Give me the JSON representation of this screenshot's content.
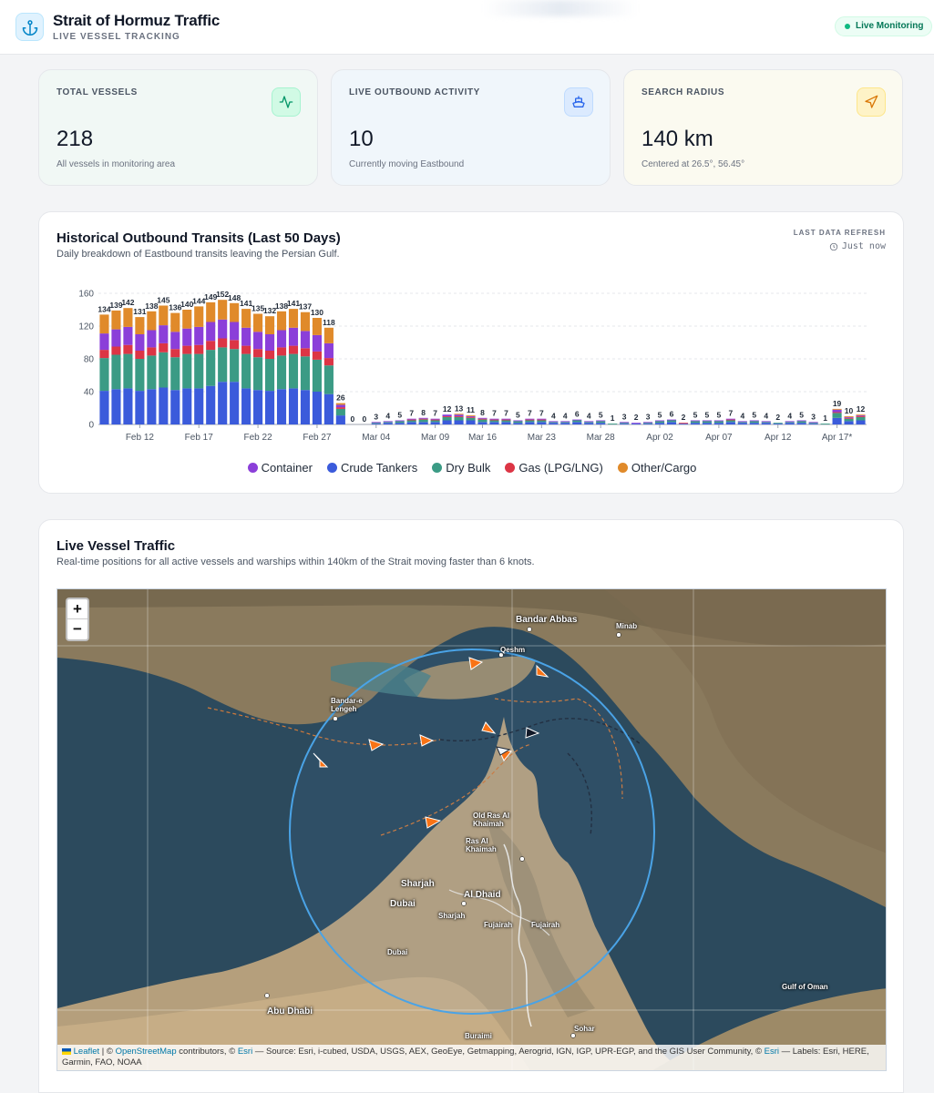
{
  "header": {
    "title": "Strait of Hormuz Traffic",
    "subtitle": "LIVE VESSEL TRACKING",
    "status_badge": "Live Monitoring"
  },
  "stats": [
    {
      "label": "TOTAL VESSELS",
      "value": "218",
      "sub": "All vessels in monitoring area",
      "icon": "activity-icon"
    },
    {
      "label": "LIVE OUTBOUND ACTIVITY",
      "value": "10",
      "sub": "Currently moving Eastbound",
      "icon": "ship-icon"
    },
    {
      "label": "SEARCH RADIUS",
      "value": "140 km",
      "sub": "Centered at 26.5°, 56.45°",
      "icon": "navigation-icon"
    }
  ],
  "transits": {
    "title": "Historical Outbound Transits (Last 50 Days)",
    "description": "Daily breakdown of Eastbound transits leaving the Persian Gulf.",
    "refresh_label": "LAST DATA REFRESH",
    "refresh_value": "Just now"
  },
  "chart_data": {
    "type": "bar",
    "stacked": true,
    "ylim": [
      0,
      160
    ],
    "yticks": [
      0,
      40,
      80,
      120,
      160
    ],
    "grid": true,
    "legend_position": "bottom",
    "x_tick_labels": [
      "Feb 12",
      "Feb 17",
      "Feb 22",
      "Feb 27",
      "Mar 04",
      "Mar 09",
      "Mar 16",
      "Mar 23",
      "Mar 28",
      "Apr 02",
      "Apr 07",
      "Apr 12",
      "Apr 17*"
    ],
    "x_tick_positions": [
      3,
      8,
      13,
      18,
      23,
      28,
      32,
      37,
      42,
      47,
      52,
      57,
      62
    ],
    "totals": [
      134,
      139,
      142,
      131,
      138,
      145,
      136,
      140,
      144,
      149,
      152,
      148,
      141,
      135,
      132,
      138,
      141,
      137,
      130,
      118,
      26,
      0,
      0,
      3,
      4,
      5,
      7,
      8,
      7,
      12,
      13,
      11,
      8,
      7,
      7,
      5,
      7,
      7,
      4,
      4,
      6,
      4,
      5,
      1,
      3,
      2,
      3,
      5,
      6,
      2,
      5,
      5,
      5,
      7,
      4,
      5,
      4,
      2,
      4,
      5,
      3,
      1,
      19,
      10,
      12
    ],
    "series": [
      {
        "name": "Crude Tankers",
        "color": "#3b5bdb",
        "values": [
          41,
          43,
          44,
          41,
          43,
          45,
          42,
          44,
          44,
          47,
          52,
          52,
          44,
          42,
          41,
          43,
          44,
          42,
          40,
          37,
          11,
          0,
          0,
          1,
          2,
          2,
          3,
          3,
          3,
          5,
          5,
          5,
          3,
          3,
          3,
          2,
          3,
          3,
          2,
          2,
          3,
          2,
          2,
          0,
          1,
          1,
          1,
          2,
          3,
          1,
          2,
          2,
          2,
          3,
          2,
          2,
          2,
          1,
          2,
          2,
          1,
          0,
          8,
          4,
          5
        ]
      },
      {
        "name": "Dry Bulk",
        "color": "#3b9b85",
        "values": [
          40,
          42,
          42,
          39,
          41,
          43,
          40,
          42,
          42,
          44,
          42,
          40,
          42,
          40,
          39,
          41,
          42,
          41,
          39,
          35,
          8,
          0,
          0,
          1,
          1,
          2,
          2,
          3,
          2,
          4,
          4,
          3,
          3,
          2,
          2,
          2,
          2,
          2,
          1,
          1,
          2,
          1,
          2,
          1,
          1,
          0,
          1,
          2,
          2,
          0,
          2,
          2,
          2,
          2,
          1,
          2,
          1,
          1,
          1,
          2,
          1,
          1,
          6,
          3,
          4
        ]
      },
      {
        "name": "Gas (LPG/LNG)",
        "color": "#dc3545",
        "values": [
          10,
          10,
          11,
          10,
          10,
          11,
          10,
          10,
          11,
          11,
          11,
          11,
          10,
          10,
          10,
          10,
          10,
          10,
          10,
          9,
          2,
          0,
          0,
          0,
          0,
          0,
          1,
          1,
          1,
          1,
          1,
          1,
          1,
          1,
          1,
          0,
          1,
          1,
          0,
          0,
          0,
          0,
          0,
          0,
          0,
          0,
          0,
          0,
          0,
          1,
          0,
          0,
          0,
          1,
          0,
          0,
          0,
          0,
          0,
          0,
          0,
          0,
          1,
          1,
          1
        ]
      },
      {
        "name": "Container",
        "color": "#8b3fd9",
        "values": [
          20,
          21,
          22,
          20,
          21,
          22,
          21,
          21,
          22,
          23,
          23,
          22,
          22,
          21,
          20,
          21,
          22,
          21,
          20,
          18,
          3,
          0,
          0,
          1,
          1,
          1,
          1,
          1,
          1,
          2,
          2,
          1,
          1,
          1,
          1,
          1,
          1,
          1,
          1,
          1,
          1,
          1,
          1,
          0,
          1,
          1,
          1,
          1,
          1,
          0,
          1,
          1,
          1,
          1,
          1,
          1,
          1,
          0,
          1,
          1,
          1,
          0,
          3,
          1,
          1
        ]
      },
      {
        "name": "Other/Cargo",
        "color": "#e08a2a",
        "values": [
          23,
          23,
          23,
          21,
          23,
          24,
          23,
          23,
          25,
          24,
          24,
          23,
          23,
          22,
          22,
          23,
          23,
          23,
          21,
          19,
          2,
          0,
          0,
          0,
          0,
          0,
          0,
          0,
          0,
          0,
          1,
          1,
          0,
          0,
          0,
          0,
          0,
          0,
          0,
          0,
          0,
          0,
          0,
          0,
          0,
          0,
          0,
          0,
          0,
          0,
          0,
          0,
          0,
          0,
          0,
          0,
          0,
          0,
          0,
          0,
          0,
          0,
          1,
          1,
          1
        ]
      }
    ],
    "legend": [
      {
        "name": "Container",
        "color": "#8b3fd9"
      },
      {
        "name": "Crude Tankers",
        "color": "#3b5bdb"
      },
      {
        "name": "Dry Bulk",
        "color": "#3b9b85"
      },
      {
        "name": "Gas (LPG/LNG)",
        "color": "#dc3545"
      },
      {
        "name": "Other/Cargo",
        "color": "#e08a2a"
      }
    ]
  },
  "live_map": {
    "title": "Live Vessel Traffic",
    "description": "Real-time positions for all active vessels and warships within 140km of the Strait moving faster than 6 knots.",
    "zoom_in": "+",
    "zoom_out": "−",
    "places": [
      "Bandar Abbas",
      "Minab",
      "Qeshm",
      "Bandar-e Lengeh",
      "Old Ras Al Khaimah",
      "Ras Al Khaimah",
      "Sharjah",
      "Al Dhaid",
      "Dubai",
      "Sharjah",
      "Fujairah",
      "Fujairah",
      "Dubai",
      "Abu Dhabi",
      "Gulf of Oman",
      "Buraimi",
      "Sohar"
    ],
    "attribution": {
      "leaflet": "Leaflet",
      "sep1": " | © ",
      "osm": "OpenStreetMap",
      "mid": " contributors, © ",
      "esri": "Esri",
      "rest": " — Source: Esri, i-cubed, USDA, USGS, AEX, GeoEye, Getmapping, Aerogrid, IGN, IGP, UPR-EGP, and the GIS User Community, © ",
      "esri2": "Esri",
      "end": " — Labels: Esri, HERE, Garmin, FAO, NOAA"
    }
  }
}
